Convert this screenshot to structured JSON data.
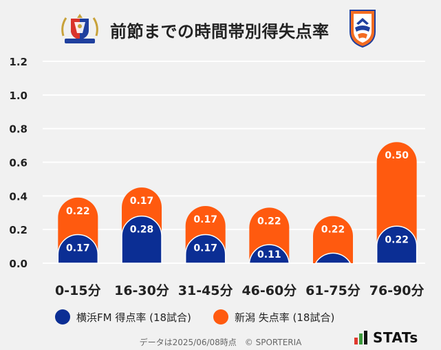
{
  "header": {
    "title": "前節までの時間帯別得失点率",
    "left_logo_text": "Yokohama F·Marinos"
  },
  "chart_data": {
    "type": "bar",
    "stacked": true,
    "categories": [
      "0-15分",
      "16-30分",
      "31-45分",
      "46-60分",
      "61-75分",
      "76-90分"
    ],
    "series": [
      {
        "name": "横浜FM 得点率 (18試合)",
        "color": "#0b2e94",
        "values": [
          0.17,
          0.28,
          0.17,
          0.11,
          0.06,
          0.22
        ],
        "labels": [
          "0.17",
          "0.28",
          "0.17",
          "0.11",
          "",
          "0.22"
        ]
      },
      {
        "name": "新潟 失点率 (18試合)",
        "color": "#ff5a0f",
        "values": [
          0.22,
          0.17,
          0.17,
          0.22,
          0.22,
          0.5
        ],
        "labels": [
          "0.22",
          "0.17",
          "0.17",
          "0.22",
          "0.22",
          "0.50"
        ]
      }
    ],
    "ylim": [
      0,
      1.2
    ],
    "yticks": [
      "0.0",
      "0.2",
      "0.4",
      "0.6",
      "0.8",
      "1.0",
      "1.2"
    ],
    "grid": true,
    "legend_position": "bottom"
  },
  "footer": {
    "note": "データは2025/06/08時点　© SPORTERIA",
    "brand": "STATs"
  }
}
